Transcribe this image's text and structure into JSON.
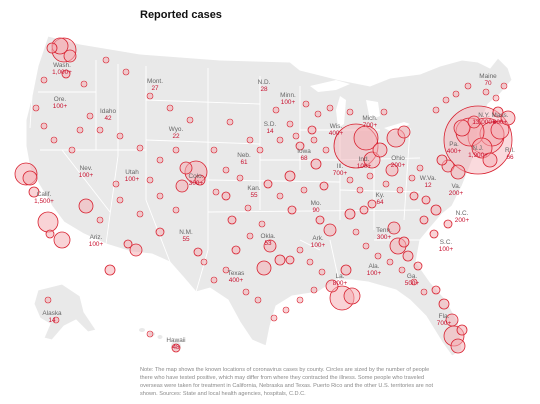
{
  "title": "Reported cases",
  "colors": {
    "land": "#e9e9e9",
    "border": "#ffffff",
    "bubble_fill": "#f4aeb4",
    "bubble_stroke": "#d8202f",
    "count_text": "#c8102e",
    "label_text": "#666666"
  },
  "states": [
    {
      "name": "Wash.",
      "count": "1,000+"
    },
    {
      "name": "Mont.",
      "count": "27"
    },
    {
      "name": "N.D.",
      "count": "28"
    },
    {
      "name": "Minn.",
      "count": "100+"
    },
    {
      "name": "Maine",
      "count": "70"
    },
    {
      "name": "Ore.",
      "count": "100+"
    },
    {
      "name": "Idaho",
      "count": "42"
    },
    {
      "name": "Wyo.",
      "count": "22"
    },
    {
      "name": "S.D.",
      "count": "14"
    },
    {
      "name": "Wis.",
      "count": "400+"
    },
    {
      "name": "Mich.",
      "count": "700+"
    },
    {
      "name": "N.Y.",
      "count": "13,000+"
    },
    {
      "name": "Mass.",
      "count": "600+"
    },
    {
      "name": "Nev.",
      "count": "100+"
    },
    {
      "name": "Utah",
      "count": "100+"
    },
    {
      "name": "Colo.",
      "count": "300+"
    },
    {
      "name": "Neb.",
      "count": "61"
    },
    {
      "name": "Iowa",
      "count": "68"
    },
    {
      "name": "Ill.",
      "count": "700+"
    },
    {
      "name": "Ind.",
      "count": "100+"
    },
    {
      "name": "Ohio",
      "count": "200+"
    },
    {
      "name": "Pa.",
      "count": "400+"
    },
    {
      "name": "N.J.",
      "count": "1,900+"
    },
    {
      "name": "R.I.",
      "count": "66"
    },
    {
      "name": "Calif.",
      "count": "1,500+"
    },
    {
      "name": "Kan.",
      "count": "55"
    },
    {
      "name": "Mo.",
      "count": "90"
    },
    {
      "name": "Ky.",
      "count": "64"
    },
    {
      "name": "W.Va.",
      "count": "12"
    },
    {
      "name": "Va.",
      "count": "200+"
    },
    {
      "name": "N.C.",
      "count": "200+"
    },
    {
      "name": "Ariz.",
      "count": "100+"
    },
    {
      "name": "N.M.",
      "count": "55"
    },
    {
      "name": "Okla.",
      "count": "53"
    },
    {
      "name": "Ark.",
      "count": "100+"
    },
    {
      "name": "Tenn.",
      "count": "300+"
    },
    {
      "name": "S.C.",
      "count": "100+"
    },
    {
      "name": "Texas",
      "count": "400+"
    },
    {
      "name": "La.",
      "count": "800+"
    },
    {
      "name": "Ala.",
      "count": "100+"
    },
    {
      "name": "Ga.",
      "count": "500+"
    },
    {
      "name": "Fla.",
      "count": "700+"
    },
    {
      "name": "Alaska",
      "count": "14"
    },
    {
      "name": "Hawaii",
      "count": "48"
    }
  ],
  "note": "Note: The map shows the known locations of coronavirus cases by county. Circles are sized by the number of people there who have tested positive, which may differ from where they contracted the illness. Some people who traveled overseas were taken for treatment in California, Nebraska and Texas. Puerto Rico and the other U.S. territories are not shown. Sources: State and local health agencies, hospitals, C.D.C."
}
